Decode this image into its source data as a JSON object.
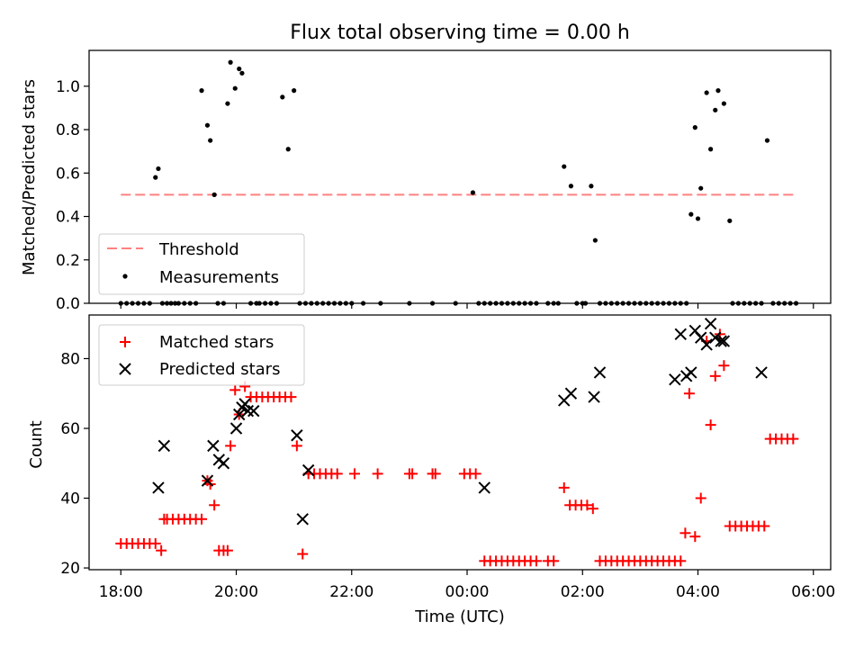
{
  "colors": {
    "threshold": "#ff8080",
    "measurements": "#000000",
    "matched": "#ff0000",
    "predicted": "#000000",
    "axes": "#000000"
  },
  "chart_data": [
    {
      "type": "scatter",
      "title": "Flux total observing time = 0.00 h",
      "xlabel": "",
      "ylabel": "Matched/Predicted stars",
      "xlim_hours": [
        -0.55,
        12.3
      ],
      "ylim": [
        0.0,
        1.165
      ],
      "yticks": [
        0.0,
        0.2,
        0.4,
        0.6,
        0.8,
        1.0
      ],
      "yticklabels": [
        "0.0",
        "0.2",
        "0.4",
        "0.6",
        "0.8",
        "1.0"
      ],
      "legend": {
        "position": "lower-left",
        "entries": [
          "Threshold",
          "Measurements"
        ]
      },
      "threshold": {
        "name": "Threshold",
        "y": 0.5,
        "x_range_hours": [
          0.0,
          11.67
        ],
        "style": "dashed"
      },
      "measurements": {
        "name": "Measurements",
        "x_hours": [
          0.0,
          0.1,
          0.2,
          0.3,
          0.4,
          0.5,
          0.6,
          0.65,
          0.72,
          0.8,
          0.87,
          0.94,
          1.0,
          1.1,
          1.2,
          1.3,
          1.4,
          1.5,
          1.55,
          1.62,
          1.68,
          1.78,
          1.85,
          1.9,
          1.98,
          2.05,
          2.1,
          2.25,
          2.35,
          2.4,
          2.5,
          2.6,
          2.7,
          2.8,
          2.9,
          3.0,
          3.1,
          3.2,
          3.3,
          3.4,
          3.5,
          3.6,
          3.7,
          3.8,
          3.9,
          4.0,
          4.2,
          4.5,
          5.0,
          5.4,
          5.8,
          6.1,
          6.2,
          6.3,
          6.4,
          6.5,
          6.6,
          6.7,
          6.8,
          6.9,
          7.0,
          7.1,
          7.2,
          7.4,
          7.5,
          7.58,
          7.68,
          7.8,
          7.9,
          8.0,
          8.05,
          8.15,
          8.22,
          8.3,
          8.4,
          8.5,
          8.6,
          8.7,
          8.8,
          8.9,
          9.0,
          9.1,
          9.2,
          9.3,
          9.4,
          9.5,
          9.6,
          9.7,
          9.8,
          9.88,
          9.95,
          10.0,
          10.05,
          10.15,
          10.22,
          10.3,
          10.35,
          10.45,
          10.55,
          10.6,
          10.7,
          10.8,
          10.9,
          11.0,
          11.1,
          11.2,
          11.3,
          11.4,
          11.5,
          11.6,
          11.7
        ],
        "y": [
          0,
          0,
          0,
          0,
          0,
          0,
          0.58,
          0.62,
          0,
          0,
          0,
          0,
          0,
          0,
          0,
          0,
          0.98,
          0.82,
          0.75,
          0.5,
          0,
          0,
          0.92,
          1.11,
          0.99,
          1.08,
          1.06,
          0,
          0,
          0,
          0,
          0,
          0,
          0.95,
          0.71,
          0.98,
          0,
          0,
          0,
          0,
          0,
          0,
          0,
          0,
          0,
          0,
          0,
          0,
          0,
          0,
          0,
          0.51,
          0,
          0,
          0,
          0,
          0,
          0,
          0,
          0,
          0,
          0,
          0,
          0,
          0,
          0,
          0.63,
          0.54,
          0,
          0,
          0,
          0.54,
          0.29,
          0,
          0,
          0,
          0,
          0,
          0,
          0,
          0,
          0,
          0,
          0,
          0,
          0,
          0,
          0,
          0,
          0.41,
          0.81,
          0.39,
          0.53,
          0.97,
          0.71,
          0.89,
          0.98,
          0.92,
          0.38,
          0,
          0,
          0,
          0,
          0,
          0,
          0.75,
          0,
          0,
          0,
          0,
          0
        ]
      }
    },
    {
      "type": "scatter",
      "title": "",
      "xlabel": "Time (UTC)",
      "ylabel": "Count",
      "xlim_hours": [
        -0.55,
        12.3
      ],
      "xticks_hours": [
        0,
        2,
        4,
        6,
        8,
        10,
        12
      ],
      "xticklabels": [
        "18:00",
        "20:00",
        "22:00",
        "00:00",
        "02:00",
        "04:00",
        "06:00"
      ],
      "ylim": [
        19.5,
        92.5
      ],
      "yticks": [
        20,
        40,
        60,
        80
      ],
      "yticklabels": [
        "20",
        "40",
        "60",
        "80"
      ],
      "legend": {
        "position": "top-left",
        "entries": [
          "Matched stars",
          "Predicted stars"
        ]
      },
      "series": [
        {
          "name": "Matched stars",
          "marker": "+",
          "x_hours": [
            0.0,
            0.1,
            0.2,
            0.3,
            0.4,
            0.5,
            0.6,
            0.7,
            0.75,
            0.8,
            0.9,
            1.0,
            1.1,
            1.2,
            1.3,
            1.4,
            1.5,
            1.55,
            1.62,
            1.7,
            1.78,
            1.85,
            1.9,
            1.98,
            2.05,
            2.15,
            2.25,
            2.35,
            2.45,
            2.55,
            2.65,
            2.75,
            2.85,
            2.95,
            3.05,
            3.15,
            3.25,
            3.35,
            3.45,
            3.55,
            3.65,
            3.75,
            4.05,
            4.45,
            5.0,
            5.05,
            5.4,
            5.45,
            5.95,
            6.05,
            6.15,
            6.3,
            6.4,
            6.5,
            6.6,
            6.7,
            6.8,
            6.9,
            7.0,
            7.1,
            7.2,
            7.4,
            7.5,
            7.68,
            7.78,
            7.88,
            7.98,
            8.08,
            8.18,
            8.3,
            8.4,
            8.5,
            8.6,
            8.7,
            8.8,
            8.9,
            9.0,
            9.1,
            9.2,
            9.3,
            9.4,
            9.5,
            9.6,
            9.7,
            9.78,
            9.85,
            9.95,
            10.05,
            10.15,
            10.22,
            10.3,
            10.38,
            10.45,
            10.55,
            10.65,
            10.75,
            10.85,
            10.95,
            11.05,
            11.15,
            11.25,
            11.35,
            11.45,
            11.55,
            11.65
          ],
          "y": [
            27,
            27,
            27,
            27,
            27,
            27,
            27,
            25,
            34,
            34,
            34,
            34,
            34,
            34,
            34,
            34,
            45,
            44,
            38,
            25,
            25,
            25,
            55,
            71,
            64,
            72,
            69,
            69,
            69,
            69,
            69,
            69,
            69,
            69,
            55,
            24,
            47,
            47,
            47,
            47,
            47,
            47,
            47,
            47,
            47,
            47,
            47,
            47,
            47,
            47,
            47,
            22,
            22,
            22,
            22,
            22,
            22,
            22,
            22,
            22,
            22,
            22,
            22,
            43,
            38,
            38,
            38,
            38,
            37,
            22,
            22,
            22,
            22,
            22,
            22,
            22,
            22,
            22,
            22,
            22,
            22,
            22,
            22,
            22,
            30,
            70,
            29,
            40,
            85,
            61,
            75,
            87,
            78,
            32,
            32,
            32,
            32,
            32,
            32,
            32,
            57,
            57,
            57,
            57,
            57
          ]
        },
        {
          "name": "Predicted stars",
          "marker": "x",
          "x_hours": [
            0.65,
            0.75,
            1.5,
            1.6,
            1.7,
            1.78,
            2.0,
            2.05,
            2.1,
            2.15,
            2.2,
            2.3,
            3.05,
            3.15,
            3.25,
            6.3,
            7.68,
            7.8,
            8.2,
            8.3,
            9.6,
            9.7,
            9.8,
            9.88,
            9.95,
            10.05,
            10.15,
            10.22,
            10.3,
            10.4,
            10.45,
            11.1
          ],
          "y": [
            43,
            55,
            45,
            55,
            51,
            50,
            60,
            64,
            66,
            67,
            65,
            65,
            58,
            34,
            48,
            43,
            68,
            70,
            69,
            76,
            74,
            87,
            75,
            76,
            88,
            86,
            84,
            90,
            86,
            85,
            85,
            76
          ]
        }
      ]
    }
  ]
}
